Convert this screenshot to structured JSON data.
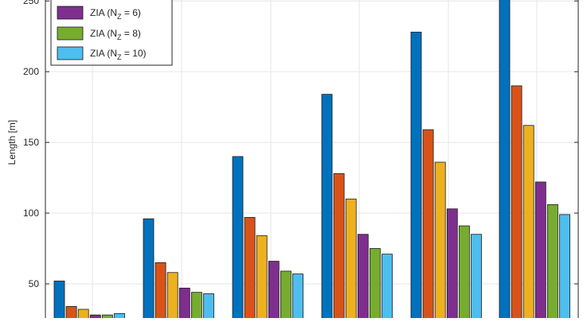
{
  "chart_data": {
    "type": "bar",
    "ylabel": "Length [m]",
    "xlabel": "",
    "ylim": [
      35,
      257
    ],
    "yticks": [
      50,
      100,
      150,
      200,
      250
    ],
    "grid": true,
    "legend_position": "top-left",
    "colors": [
      "#0072BD",
      "#D95319",
      "#EDB120",
      "#7E2F8E",
      "#77AC30",
      "#4DBEEE"
    ],
    "groups": 6,
    "series": [
      {
        "values": [
          52,
          96,
          140,
          184,
          228,
          256
        ]
      },
      {
        "values": [
          34,
          65,
          97,
          128,
          159,
          190
        ]
      },
      {
        "values": [
          32,
          58,
          84,
          110,
          136,
          162
        ]
      },
      {
        "name_prefix": "ZIA (N",
        "name_sub": "Z",
        "name_suffix": " = 6)",
        "values": [
          28,
          47,
          66,
          85,
          103,
          122
        ]
      },
      {
        "name_prefix": "ZIA (N",
        "name_sub": "Z",
        "name_suffix": " = 8)",
        "values": [
          28,
          44,
          59,
          75,
          91,
          106
        ]
      },
      {
        "name_prefix": "ZIA (N",
        "name_sub": "Z",
        "name_suffix": " = 10)",
        "values": [
          29,
          43,
          57,
          71,
          85,
          99
        ]
      }
    ]
  }
}
